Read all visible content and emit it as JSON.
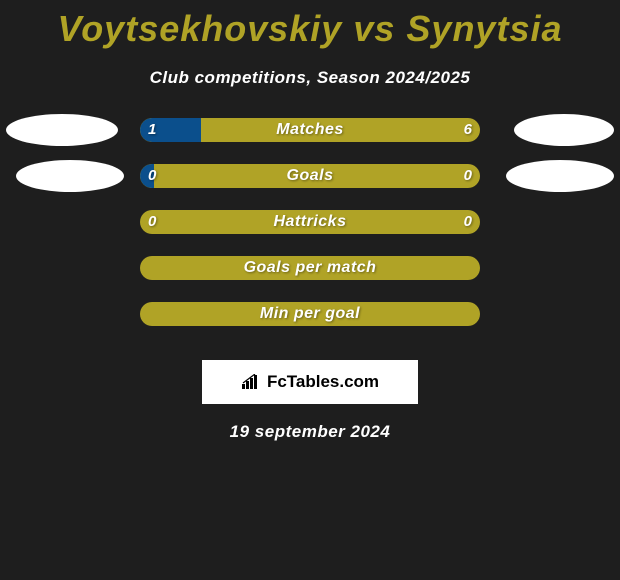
{
  "title": {
    "player1": "Voytsekhovskiy",
    "vs": "vs",
    "player2": "Synytsia",
    "color_accent": "#b0a326",
    "title_fontsize": 36
  },
  "subtitle": "Club competitions, Season 2024/2025",
  "stats": [
    {
      "label": "Matches",
      "left_value": "1",
      "right_value": "6",
      "left_fill_pct": 18,
      "show_left_oval": true,
      "show_right_oval": true,
      "oval_style": "big"
    },
    {
      "label": "Goals",
      "left_value": "0",
      "right_value": "0",
      "left_fill_pct": 4,
      "show_left_oval": true,
      "show_right_oval": true,
      "oval_style": "small"
    },
    {
      "label": "Hattricks",
      "left_value": "0",
      "right_value": "0",
      "left_fill_pct": 0,
      "show_left_oval": false,
      "show_right_oval": false
    },
    {
      "label": "Goals per match",
      "left_value": "",
      "right_value": "",
      "left_fill_pct": 0,
      "show_left_oval": false,
      "show_right_oval": false
    },
    {
      "label": "Min per goal",
      "left_value": "",
      "right_value": "",
      "left_fill_pct": 0,
      "show_left_oval": false,
      "show_right_oval": false
    }
  ],
  "branding": {
    "text": "FcTables.com"
  },
  "date": "19 september 2024",
  "colors": {
    "background": "#1e1e1e",
    "bar_bg": "#b0a326",
    "bar_fill": "#0b4f8c",
    "text": "#ffffff",
    "oval": "#ffffff"
  }
}
